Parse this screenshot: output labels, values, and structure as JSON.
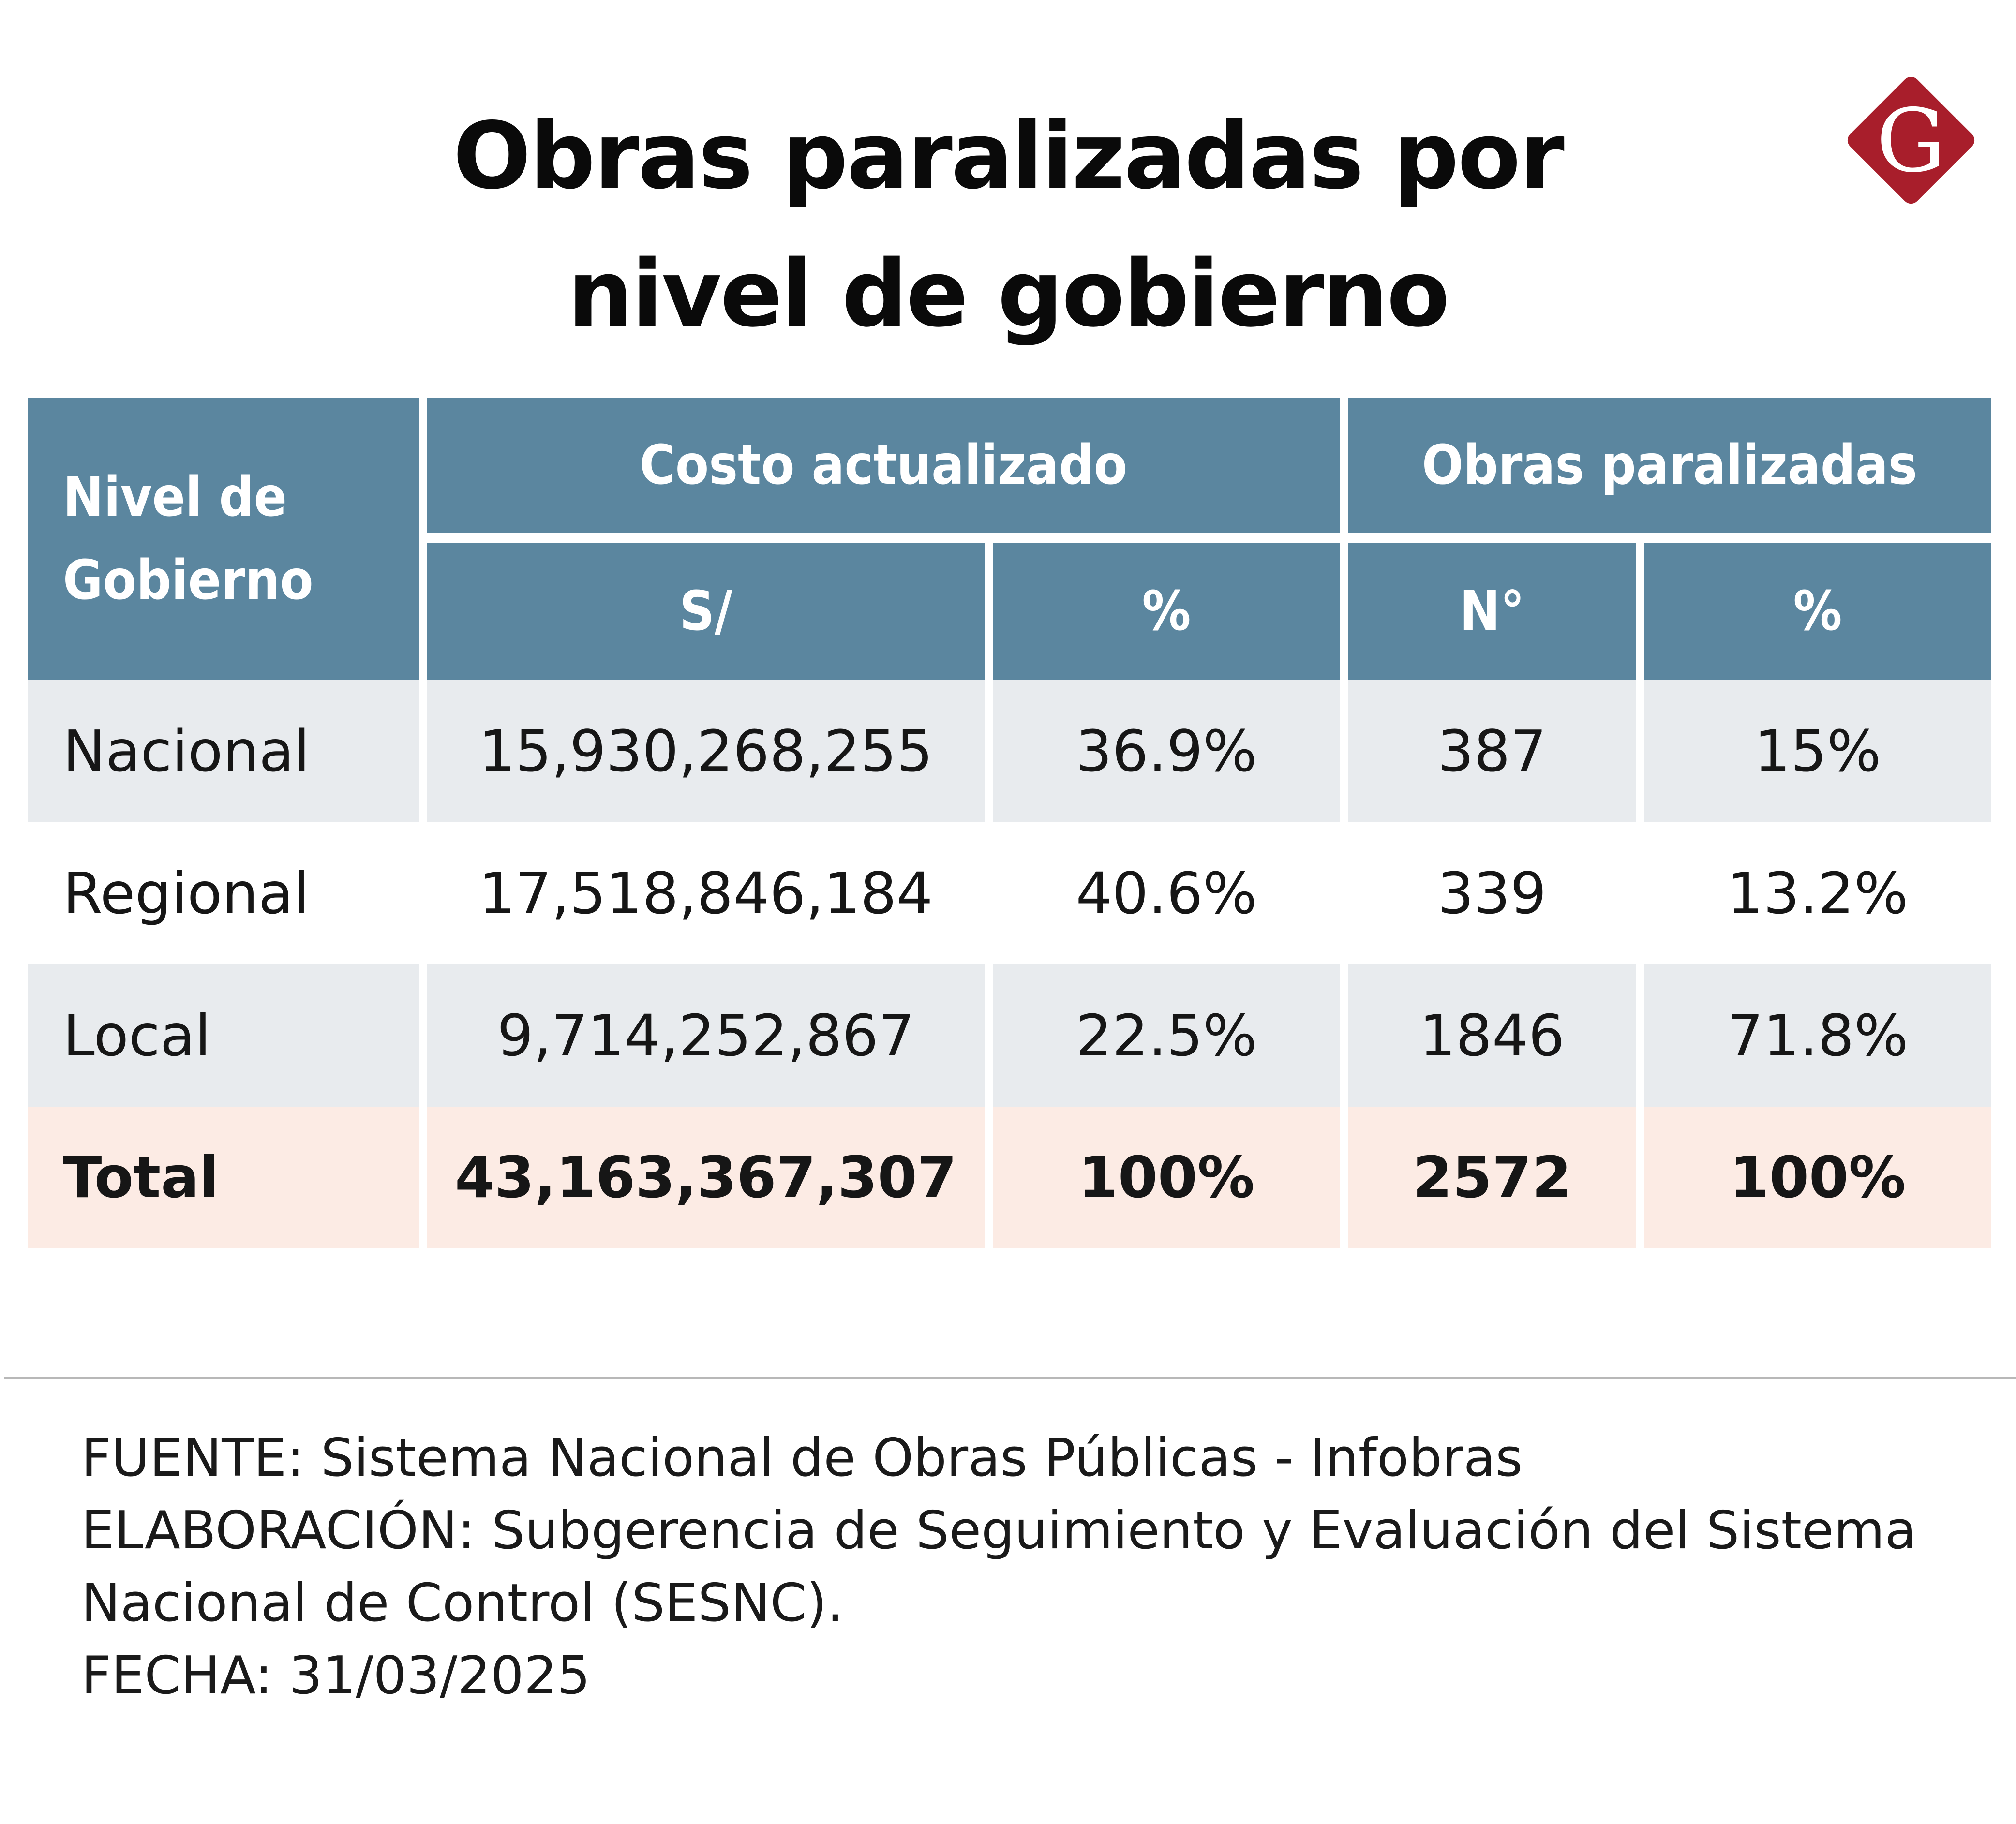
{
  "chart_data": {
    "type": "table",
    "title_line1": "Obras paralizadas por",
    "title_line2": "nivel de gobierno",
    "header": {
      "nivel": "Nivel de Gobierno",
      "costo_group": "Costo actualizado",
      "obras_group": "Obras paralizadas",
      "soles": "S/",
      "costo_pct": "%",
      "numero": "N°",
      "obras_pct": "%"
    },
    "rows": [
      {
        "nivel": "Nacional",
        "costo": "15,930,268,255",
        "costo_pct": "36.9%",
        "obras": "387",
        "obras_pct": "15%"
      },
      {
        "nivel": "Regional",
        "costo": "17,518,846,184",
        "costo_pct": "40.6%",
        "obras": "339",
        "obras_pct": "13.2%"
      },
      {
        "nivel": "Local",
        "costo": "9,714,252,867",
        "costo_pct": "22.5%",
        "obras": "1846",
        "obras_pct": "71.8%"
      }
    ],
    "total": {
      "nivel": "Total",
      "costo": "43,163,367,307",
      "costo_pct": "100%",
      "obras": "2572",
      "obras_pct": "100%"
    }
  },
  "footer": {
    "fuente": "FUENTE: Sistema Nacional de Obras Públicas - Infobras",
    "elaboracion_1": "ELABORACIÓN: Subgerencia de Seguimiento y Evaluación del Sistema",
    "elaboracion_2": "Nacional de Control (SESNC).",
    "fecha": "FECHA: 31/03/2025"
  },
  "colors": {
    "header_bg": "#5b869f",
    "row_alt_bg": "#e8ebee",
    "total_bg": "#fcebe4",
    "logo_red": "#a81e2b"
  },
  "logo": {
    "letter": "G",
    "icon": "gestion-logo-icon"
  }
}
